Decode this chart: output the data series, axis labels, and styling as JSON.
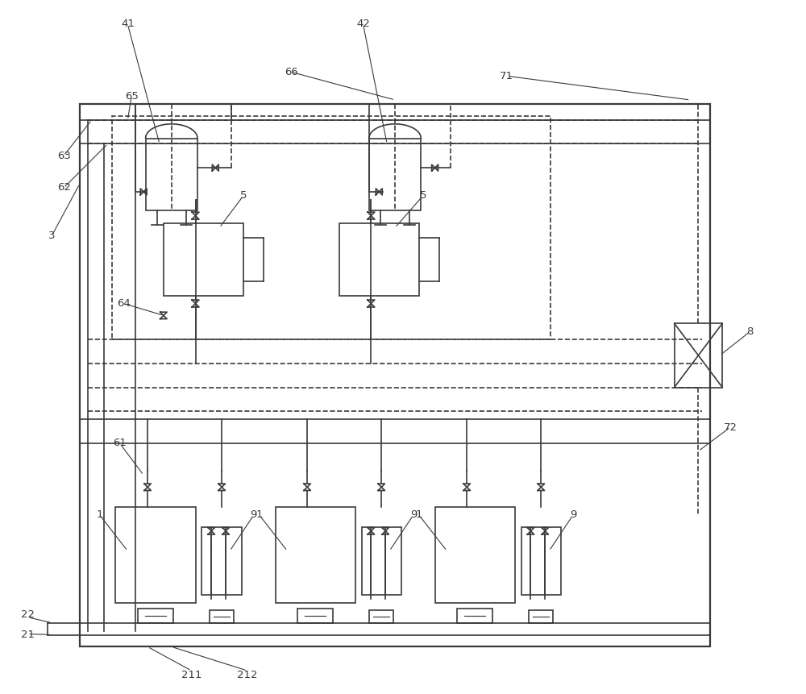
{
  "bg_color": "#ffffff",
  "line_color": "#3a3a3a",
  "figsize": [
    10.0,
    8.61
  ],
  "dpi": 100,
  "xlim": [
    0,
    100
  ],
  "ylim": [
    0,
    86.1
  ]
}
